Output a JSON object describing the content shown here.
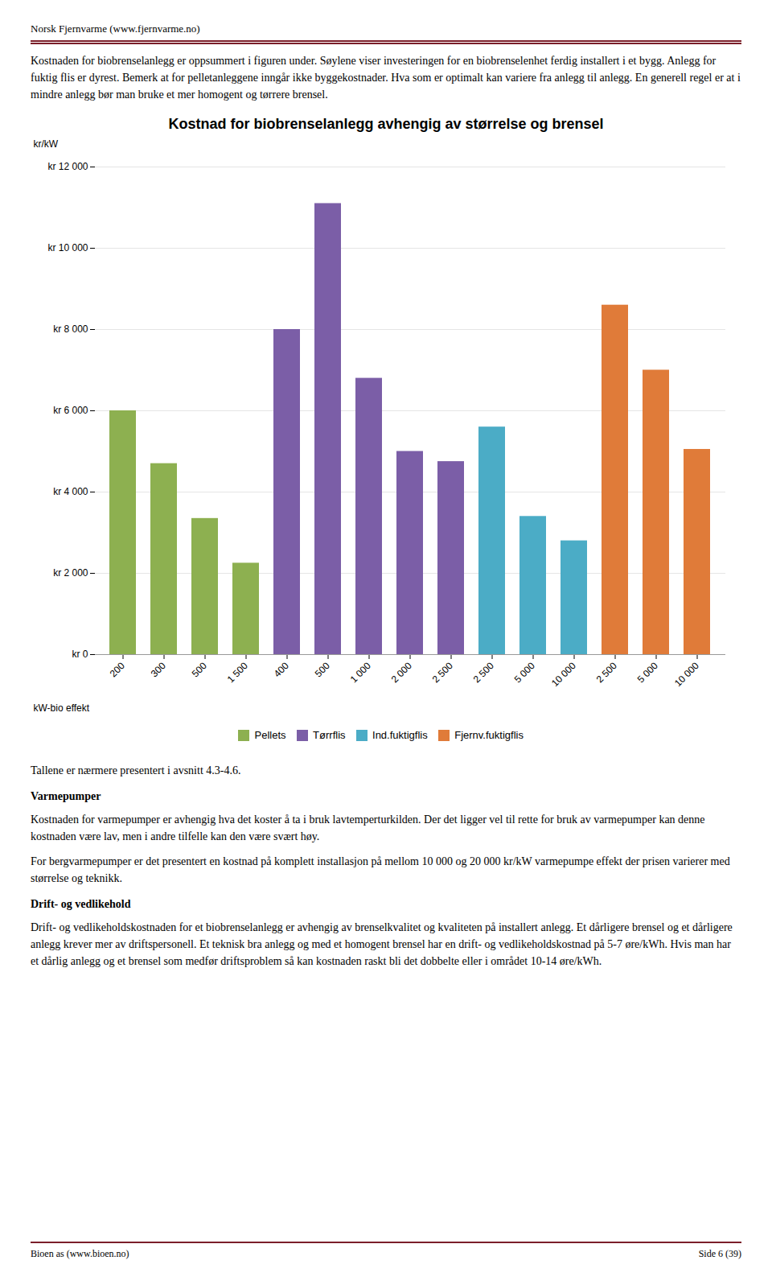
{
  "page_title": "Norsk Fjernvarme (www.fjernvarme.no)",
  "text_above": "Kostnaden for biobrenselanlegg er oppsummert i figuren under. Søylene viser investeringen for en biobrenselenhet ferdig installert i et bygg. Anlegg for fuktig flis er dyrest. Bemerk at for pelletanleggene inngår ikke byggekostnader. Hva som er optimalt kan variere fra anlegg til anlegg. En generell regel er at i mindre anlegg bør man bruke et mer homogent og tørrere brensel.",
  "text_below": "Tallene er nærmere presentert i avsnitt 4.3-4.6.",
  "text_varmepumper_title": "Varmepumper",
  "text_varmepumper": "Kostnaden for varmepumper er avhengig hva det koster å ta i bruk lavtemperturkilden. Der det ligger vel til rette for bruk av varmepumper kan denne kostnaden være lav, men i andre tilfelle kan den være svært høy.",
  "text_berg": "For bergvarmepumper er det presentert en kostnad på komplett installasjon på mellom 10 000 og 20 000 kr/kW varmepumpe effekt der prisen varierer med størrelse og teknikk.",
  "text_drift_title": "Drift- og vedlikehold",
  "text_drift": "Drift- og vedlikeholdskostnaden for et biobrenselanlegg er avhengig av brenselkvalitet og kvaliteten på installert anlegg. Et dårligere brensel og et dårligere anlegg krever mer av driftspersonell. Et teknisk bra anlegg og med et homogent brensel har en drift- og vedlikeholdskostnad på 5-7 øre/kWh. Hvis man har et dårlig anlegg og et brensel som medfør driftsproblem så kan kostnaden raskt bli det dobbelte eller i området 10-14 øre/kWh.",
  "footer_left": "Bioen as (www.bioen.no)",
  "footer_right": "Side 6 (39)",
  "chart_data": {
    "type": "bar",
    "title": "Kostnad for biobrenselanlegg avhengig av størrelse og brensel",
    "xlabel": "kW-bio effekt",
    "ylabel": "kr/kW",
    "categories": [
      "200",
      "300",
      "500",
      "1 500",
      "400",
      "500",
      "1 000",
      "2 000",
      "2 500",
      "2 500",
      "5 000",
      "10 000",
      "2 500",
      "5 000",
      "10 000"
    ],
    "series": [
      {
        "name": "Pellets",
        "color": "#8DB050",
        "values": [
          6000,
          4700,
          3350,
          2250,
          null,
          null,
          null,
          null,
          null,
          null,
          null,
          null,
          null,
          null,
          null
        ]
      },
      {
        "name": "Tørrflis",
        "color": "#7B5EA7",
        "values": [
          null,
          null,
          null,
          null,
          8000,
          11100,
          6800,
          5000,
          4750,
          null,
          null,
          null,
          null,
          null,
          null
        ]
      },
      {
        "name": "Ind.fuktigflis",
        "color": "#4BACC6",
        "values": [
          null,
          null,
          null,
          null,
          null,
          null,
          null,
          null,
          null,
          5600,
          3400,
          2800,
          null,
          null,
          null
        ]
      },
      {
        "name": "Fjernv.fuktigflis",
        "color": "#E07B39",
        "values": [
          null,
          null,
          null,
          null,
          null,
          null,
          null,
          null,
          null,
          null,
          null,
          null,
          8600,
          7000,
          5050
        ]
      }
    ],
    "ylim": [
      0,
      12000
    ],
    "yticks": [
      {
        "value": 0,
        "label": "kr 0"
      },
      {
        "value": 2000,
        "label": "kr 2 000"
      },
      {
        "value": 4000,
        "label": "kr 4 000"
      },
      {
        "value": 6000,
        "label": "kr 6 000"
      },
      {
        "value": 8000,
        "label": "kr 8 000"
      },
      {
        "value": 10000,
        "label": "kr 10 000"
      },
      {
        "value": 12000,
        "label": "kr 12 000"
      }
    ],
    "grid": true,
    "legend": "bottom"
  }
}
